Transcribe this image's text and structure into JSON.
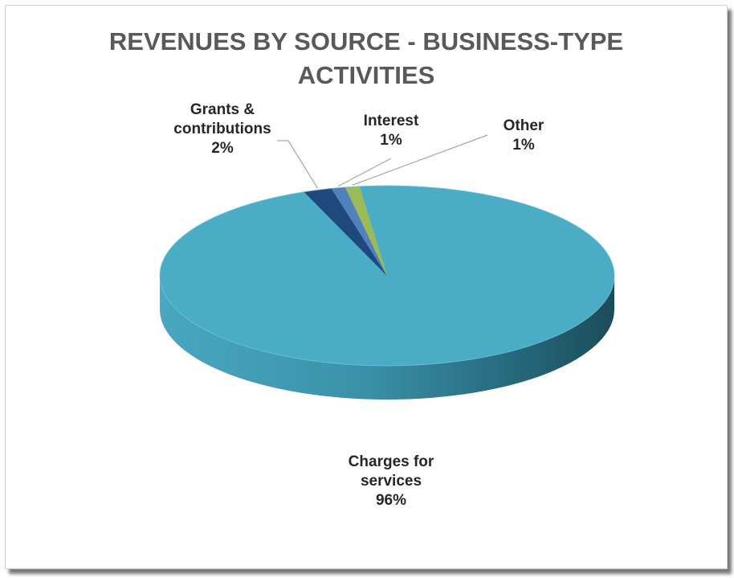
{
  "title_line1": "REVENUES BY SOURCE - BUSINESS-TYPE",
  "title_line2": "ACTIVITIES",
  "chart_data": {
    "type": "pie",
    "title": "REVENUES BY SOURCE - BUSINESS-TYPE ACTIVITIES",
    "slices": [
      {
        "label": "Charges for services",
        "label_lines": [
          "Charges for",
          "services"
        ],
        "value": 96,
        "display": "96%",
        "color": "#4bacc6"
      },
      {
        "label": "Grants & contributions",
        "label_lines": [
          "Grants &",
          "contributions"
        ],
        "value": 2,
        "display": "2%",
        "color": "#1f497d"
      },
      {
        "label": "Interest",
        "label_lines": [
          "Interest"
        ],
        "value": 1,
        "display": "1%",
        "color": "#4f81bd"
      },
      {
        "label": "Other",
        "label_lines": [
          "Other"
        ],
        "value": 1,
        "display": "1%",
        "color": "#9bbb59"
      }
    ],
    "legend": "none",
    "style": "3d"
  }
}
